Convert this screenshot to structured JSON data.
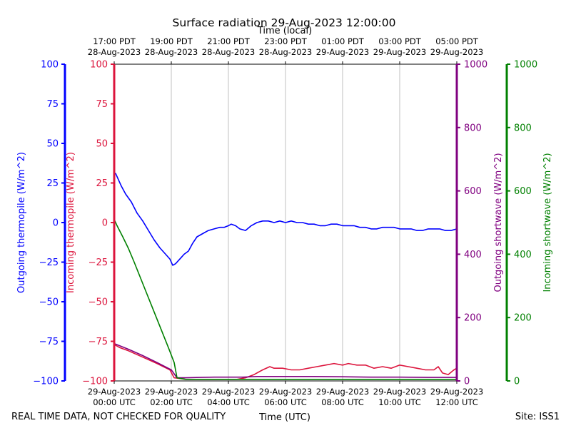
{
  "chart_data": {
    "type": "line",
    "title": "Surface radiation 29-Aug-2023 12:00:00",
    "top_xlabel": "Time (local)",
    "xlabel": "Time (UTC)",
    "footer_left": "REAL TIME DATA, NOT CHECKED FOR QUALITY",
    "footer_right": "Site: ISS1",
    "x_range_hours": [
      0,
      12
    ],
    "bottom_ticks": [
      {
        "h": 0,
        "l1": "29-Aug-2023",
        "l2": "00:00 UTC"
      },
      {
        "h": 2,
        "l1": "29-Aug-2023",
        "l2": "02:00 UTC"
      },
      {
        "h": 4,
        "l1": "29-Aug-2023",
        "l2": "04:00 UTC"
      },
      {
        "h": 6,
        "l1": "29-Aug-2023",
        "l2": "06:00 UTC"
      },
      {
        "h": 8,
        "l1": "29-Aug-2023",
        "l2": "08:00 UTC"
      },
      {
        "h": 10,
        "l1": "29-Aug-2023",
        "l2": "10:00 UTC"
      },
      {
        "h": 12,
        "l1": "29-Aug-2023",
        "l2": "12:00 UTC"
      }
    ],
    "top_ticks": [
      {
        "h": 0,
        "l1": "17:00 PDT",
        "l2": "28-Aug-2023"
      },
      {
        "h": 2,
        "l1": "19:00 PDT",
        "l2": "28-Aug-2023"
      },
      {
        "h": 4,
        "l1": "21:00 PDT",
        "l2": "28-Aug-2023"
      },
      {
        "h": 6,
        "l1": "23:00 PDT",
        "l2": "28-Aug-2023"
      },
      {
        "h": 8,
        "l1": "01:00 PDT",
        "l2": "29-Aug-2023"
      },
      {
        "h": 10,
        "l1": "03:00 PDT",
        "l2": "29-Aug-2023"
      },
      {
        "h": 12,
        "l1": "05:00 PDT",
        "l2": "29-Aug-2023"
      }
    ],
    "axes": {
      "out_thermo": {
        "label": "Outgoing thermopile (W/m^2)",
        "color": "#0000ff",
        "ylim": [
          -100,
          100
        ],
        "ticks": [
          -100,
          -75,
          -50,
          -25,
          0,
          25,
          50,
          75,
          100
        ],
        "labels": [
          "−100",
          "−75",
          "−50",
          "−25",
          "0",
          "25",
          "50",
          "75",
          "100"
        ]
      },
      "in_thermo": {
        "label": "Incoming thermopile (W/m^2)",
        "color": "#dc143c",
        "ylim": [
          -100,
          100
        ],
        "ticks": [
          -100,
          -75,
          -50,
          -25,
          0,
          25,
          50,
          75,
          100
        ],
        "labels": [
          "−100",
          "−75",
          "−50",
          "−25",
          "0",
          "25",
          "50",
          "75",
          "100"
        ]
      },
      "out_sw": {
        "label": "Outgoing shortwave (W/m^2)",
        "color": "#800080",
        "ylim": [
          0,
          1000
        ],
        "ticks": [
          0,
          200,
          400,
          600,
          800,
          1000
        ],
        "labels": [
          "0",
          "200",
          "400",
          "600",
          "800",
          "1000"
        ]
      },
      "in_sw": {
        "label": "Incoming shortwave (W/m^2)",
        "color": "#008000",
        "ylim": [
          0,
          1000
        ],
        "ticks": [
          0,
          200,
          400,
          600,
          800,
          1000
        ],
        "labels": [
          "0",
          "200",
          "400",
          "600",
          "800",
          "1000"
        ]
      }
    },
    "series": [
      {
        "name": "Outgoing thermopile",
        "axis": "out_thermo",
        "color": "#0000ff",
        "x": [
          0,
          0.05,
          0.15,
          0.25,
          0.4,
          0.6,
          0.8,
          1.0,
          1.2,
          1.4,
          1.6,
          1.8,
          1.95,
          2.05,
          2.15,
          2.3,
          2.45,
          2.6,
          2.75,
          2.9,
          3.1,
          3.3,
          3.5,
          3.7,
          3.85,
          4.0,
          4.1,
          4.25,
          4.4,
          4.6,
          4.8,
          5.0,
          5.2,
          5.4,
          5.6,
          5.8,
          6.0,
          6.2,
          6.4,
          6.6,
          6.8,
          7.0,
          7.2,
          7.4,
          7.6,
          7.8,
          8.0,
          8.2,
          8.4,
          8.6,
          8.8,
          9.0,
          9.2,
          9.4,
          9.6,
          9.8,
          10.0,
          10.2,
          10.4,
          10.6,
          10.8,
          11.0,
          11.2,
          11.4,
          11.6,
          11.8,
          12.0
        ],
        "y": [
          31,
          31,
          27,
          23,
          18,
          13,
          6,
          1,
          -5,
          -11,
          -16,
          -20,
          -23,
          -27,
          -26,
          -23,
          -20,
          -18,
          -13,
          -9,
          -7,
          -5,
          -4,
          -3,
          -3,
          -2,
          -1,
          -2,
          -4,
          -5,
          -2,
          0,
          1,
          1,
          0,
          1,
          0,
          1,
          0,
          0,
          -1,
          -1,
          -2,
          -2,
          -1,
          -1,
          -2,
          -2,
          -2,
          -3,
          -3,
          -4,
          -4,
          -3,
          -3,
          -3,
          -4,
          -4,
          -4,
          -5,
          -5,
          -4,
          -4,
          -4,
          -5,
          -5,
          -4
        ]
      },
      {
        "name": "Incoming thermopile",
        "axis": "in_thermo",
        "color": "#dc143c",
        "x": [
          0,
          0.2,
          0.5,
          1.0,
          1.5,
          1.95,
          2.1,
          2.5,
          3.0,
          3.5,
          4.0,
          4.3,
          4.6,
          4.9,
          5.2,
          5.45,
          5.6,
          5.9,
          6.2,
          6.5,
          6.8,
          7.1,
          7.4,
          7.7,
          8.0,
          8.2,
          8.5,
          8.8,
          9.1,
          9.4,
          9.7,
          10.0,
          10.3,
          10.6,
          10.9,
          11.2,
          11.35,
          11.5,
          11.7,
          11.9,
          12.0
        ],
        "y": [
          -77,
          -79,
          -81,
          -85,
          -89,
          -93,
          -98,
          -99,
          -99,
          -99,
          -99,
          -99,
          -98,
          -96,
          -93,
          -91,
          -92,
          -92,
          -93,
          -93,
          -92,
          -91,
          -90,
          -89,
          -90,
          -89,
          -90,
          -90,
          -92,
          -91,
          -92,
          -90,
          -91,
          -92,
          -93,
          -93,
          -91,
          -95,
          -96,
          -93,
          -92
        ]
      },
      {
        "name": "Outgoing shortwave",
        "axis": "out_sw",
        "color": "#800080",
        "x": [
          0,
          0.5,
          1.0,
          1.5,
          2.0,
          2.2,
          2.5,
          3.0,
          3.5,
          4.0,
          4.5,
          5.0,
          5.5,
          6.0,
          7.0,
          8.0,
          9.0,
          10.0,
          11.0,
          12.0
        ],
        "y": [
          118,
          100,
          80,
          58,
          35,
          10,
          10,
          11,
          12,
          12,
          12,
          14,
          14,
          14,
          14,
          13,
          12,
          12,
          11,
          11
        ]
      },
      {
        "name": "Incoming shortwave",
        "axis": "in_sw",
        "color": "#008000",
        "x": [
          0,
          0.1,
          0.3,
          0.5,
          0.7,
          0.9,
          1.1,
          1.3,
          1.5,
          1.7,
          1.9,
          2.1,
          2.2,
          2.5,
          3.0,
          4.0,
          5.0,
          6.0,
          7.0,
          8.0,
          9.0,
          10.0,
          11.0,
          12.0
        ],
        "y": [
          510,
          490,
          455,
          418,
          375,
          330,
          285,
          240,
          195,
          150,
          105,
          58,
          10,
          5,
          5,
          5,
          5,
          5,
          5,
          5,
          5,
          5,
          5,
          5
        ]
      }
    ]
  }
}
